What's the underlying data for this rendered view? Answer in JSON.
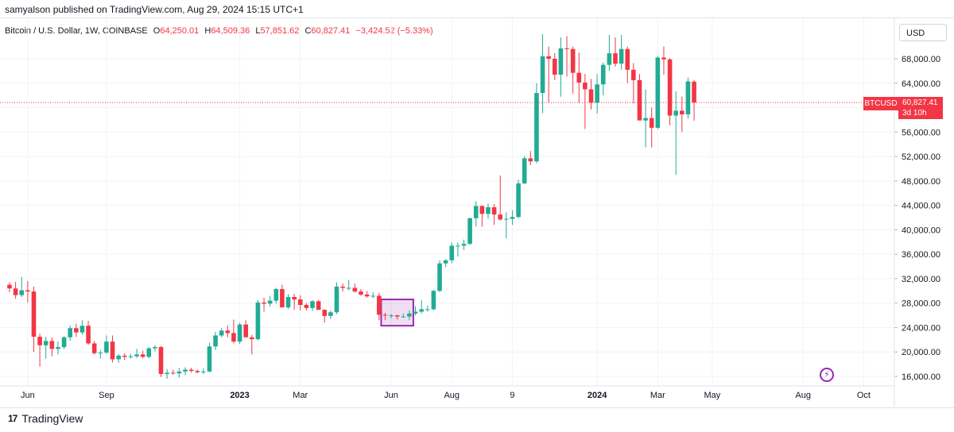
{
  "header": {
    "published": "samyalson published on TradingView.com, Aug 29, 2024 15:15 UTC+1"
  },
  "legend": {
    "symbol": "Bitcoin / U.S. Dollar, 1W, COINBASE",
    "o_label": "O",
    "o_value": "64,250.01",
    "h_label": "H",
    "h_value": "64,509.36",
    "l_label": "L",
    "l_value": "57,851.62",
    "c_label": "C",
    "c_value": "60,827.41",
    "change": "−3,424.52 (−5.33%)"
  },
  "currency_button": "USD",
  "last_price": {
    "ticker": "BTCUSD",
    "price": "60,827.41",
    "countdown": "3d 10h",
    "value": 60827.41
  },
  "colors": {
    "up": "#22ab94",
    "down": "#f23645",
    "highlight": "#9c27b0",
    "grid": "#f0f3fa",
    "text": "#131722"
  },
  "footer": {
    "brand": "TradingView",
    "icon": "tradingview-logo-icon"
  },
  "chart_data": {
    "type": "candlestick",
    "timeframe": "1W",
    "ylim": [
      14000,
      74000
    ],
    "y_ticks": [
      16000,
      20000,
      24000,
      28000,
      32000,
      36000,
      40000,
      44000,
      48000,
      52000,
      56000,
      60000,
      64000,
      68000
    ],
    "y_tick_labels": [
      "16,000.00",
      "20,000.00",
      "24,000.00",
      "28,000.00",
      "32,000.00",
      "36,000.00",
      "40,000.00",
      "44,000.00",
      "48,000.00",
      "52,000.00",
      "56,000.00",
      "60,000.00",
      "64,000.00",
      "68,000.00"
    ],
    "x_ticks": [
      {
        "label": "Jun",
        "index": 3
      },
      {
        "label": "Sep",
        "index": 16
      },
      {
        "label": "2023",
        "index": 38
      },
      {
        "label": "Mar",
        "index": 48
      },
      {
        "label": "Jun",
        "index": 63
      },
      {
        "label": "Aug",
        "index": 73
      },
      {
        "label": "9",
        "index": 83
      },
      {
        "label": "2024",
        "index": 97
      },
      {
        "label": "Mar",
        "index": 107
      },
      {
        "label": "May",
        "index": 116
      },
      {
        "label": "Aug",
        "index": 131
      },
      {
        "label": "Oct",
        "index": 141
      }
    ],
    "candles": [
      [
        31000,
        31400,
        29800,
        30400
      ],
      [
        30400,
        31500,
        28700,
        29300
      ],
      [
        29300,
        32300,
        29000,
        30100
      ],
      [
        30100,
        31600,
        28100,
        29900
      ],
      [
        29900,
        30700,
        20000,
        22500
      ],
      [
        22500,
        23000,
        17600,
        21100
      ],
      [
        21100,
        22500,
        18900,
        21800
      ],
      [
        21800,
        22400,
        19300,
        20500
      ],
      [
        20500,
        21700,
        19600,
        20800
      ],
      [
        20800,
        22600,
        20500,
        22400
      ],
      [
        22400,
        24300,
        21800,
        23900
      ],
      [
        23900,
        24600,
        22500,
        23200
      ],
      [
        23200,
        25200,
        22800,
        24300
      ],
      [
        24300,
        25100,
        21200,
        21400
      ],
      [
        21400,
        21800,
        19600,
        19800
      ],
      [
        19800,
        20300,
        18900,
        19900
      ],
      [
        19900,
        22700,
        19700,
        21700
      ],
      [
        21700,
        22700,
        18300,
        18800
      ],
      [
        18800,
        19700,
        18200,
        19400
      ],
      [
        19400,
        19800,
        18700,
        19200
      ],
      [
        19200,
        19700,
        18900,
        19300
      ],
      [
        19300,
        20500,
        19000,
        19600
      ],
      [
        19600,
        20200,
        19000,
        19200
      ],
      [
        19200,
        20800,
        19000,
        20600
      ],
      [
        20600,
        21100,
        20100,
        20800
      ],
      [
        20800,
        21000,
        15900,
        16400
      ],
      [
        16400,
        17200,
        15600,
        16600
      ],
      [
        16600,
        17100,
        16300,
        16500
      ],
      [
        16500,
        17400,
        15800,
        16800
      ],
      [
        16800,
        17500,
        16200,
        17100
      ],
      [
        17100,
        17400,
        16600,
        16900
      ],
      [
        16900,
        17100,
        16500,
        16700
      ],
      [
        16700,
        17300,
        16400,
        16800
      ],
      [
        16800,
        21500,
        16700,
        20900
      ],
      [
        20900,
        23300,
        20300,
        22700
      ],
      [
        22700,
        23900,
        22400,
        23500
      ],
      [
        23500,
        24300,
        22400,
        23100
      ],
      [
        23100,
        25300,
        21400,
        21700
      ],
      [
        21700,
        24800,
        21300,
        24500
      ],
      [
        24500,
        25200,
        22800,
        22400
      ],
      [
        22400,
        22800,
        19600,
        22100
      ],
      [
        22100,
        28500,
        21900,
        28100
      ],
      [
        28100,
        28900,
        26600,
        27900
      ],
      [
        27900,
        29200,
        27400,
        28400
      ],
      [
        28400,
        30500,
        27900,
        30300
      ],
      [
        30300,
        31000,
        27300,
        27300
      ],
      [
        27300,
        29500,
        27000,
        29000
      ],
      [
        29000,
        29500,
        26900,
        28600
      ],
      [
        28600,
        29300,
        26800,
        27700
      ],
      [
        27700,
        28000,
        26800,
        27200
      ],
      [
        27200,
        28500,
        26700,
        28300
      ],
      [
        28300,
        28500,
        26900,
        26900
      ],
      [
        26900,
        27000,
        24800,
        25900
      ],
      [
        25900,
        26800,
        25400,
        26500
      ],
      [
        26500,
        31400,
        26200,
        30700
      ],
      [
        30700,
        31200,
        29900,
        30500
      ],
      [
        30500,
        31800,
        30100,
        30500
      ],
      [
        30500,
        31200,
        29700,
        29900
      ],
      [
        29900,
        30300,
        29200,
        29400
      ],
      [
        29400,
        30000,
        28900,
        29100
      ],
      [
        29100,
        29800,
        28800,
        29200
      ],
      [
        29200,
        29700,
        25200,
        26100
      ],
      [
        26100,
        26400,
        25200,
        26000
      ],
      [
        26000,
        26200,
        25500,
        26000
      ],
      [
        26000,
        26100,
        25300,
        25800
      ],
      [
        25800,
        26300,
        25600,
        25800
      ],
      [
        25800,
        26800,
        25200,
        26300
      ],
      [
        26300,
        27500,
        26000,
        26600
      ],
      [
        26600,
        28500,
        26300,
        27000
      ],
      [
        27000,
        27600,
        26600,
        27000
      ],
      [
        27000,
        30200,
        26800,
        30000
      ],
      [
        30000,
        35000,
        29800,
        34500
      ],
      [
        34500,
        35200,
        33900,
        35000
      ],
      [
        35000,
        37900,
        34500,
        37400
      ],
      [
        37400,
        37900,
        35600,
        37400
      ],
      [
        37400,
        38400,
        36700,
        37700
      ],
      [
        37700,
        42000,
        37500,
        41900
      ],
      [
        41900,
        44700,
        40500,
        43900
      ],
      [
        43900,
        44000,
        40500,
        42600
      ],
      [
        42600,
        44300,
        41800,
        43700
      ],
      [
        43700,
        44200,
        40800,
        42500
      ],
      [
        42500,
        48900,
        41500,
        41700
      ],
      [
        41700,
        42900,
        38600,
        41800
      ],
      [
        41800,
        43200,
        40800,
        42100
      ],
      [
        42100,
        48200,
        41900,
        47600
      ],
      [
        47600,
        52100,
        47500,
        51700
      ],
      [
        51700,
        52900,
        50600,
        51200
      ],
      [
        51200,
        64000,
        50900,
        62400
      ],
      [
        62400,
        72000,
        59100,
        68400
      ],
      [
        68400,
        70000,
        60800,
        68000
      ],
      [
        68000,
        68900,
        64500,
        65400
      ],
      [
        65400,
        71500,
        61800,
        69700
      ],
      [
        69700,
        71700,
        65100,
        69600
      ],
      [
        69600,
        70000,
        62300,
        65700
      ],
      [
        65700,
        69000,
        60800,
        64100
      ],
      [
        64100,
        65500,
        56500,
        63000
      ],
      [
        63000,
        64700,
        59700,
        60800
      ],
      [
        60800,
        65500,
        59000,
        63800
      ],
      [
        63800,
        67400,
        62000,
        67000
      ],
      [
        67000,
        71900,
        66000,
        68900
      ],
      [
        68900,
        71500,
        66700,
        67200
      ],
      [
        67200,
        71900,
        66200,
        69600
      ],
      [
        69600,
        70000,
        64000,
        66200
      ],
      [
        66200,
        67300,
        60700,
        64500
      ],
      [
        64500,
        65500,
        58400,
        57900
      ],
      [
        57900,
        63000,
        53500,
        58300
      ],
      [
        58300,
        60000,
        53500,
        56700
      ],
      [
        56700,
        68500,
        56500,
        68200
      ],
      [
        68200,
        70000,
        65400,
        67900
      ],
      [
        67900,
        68100,
        57100,
        58700
      ],
      [
        58700,
        62700,
        49000,
        59500
      ],
      [
        59500,
        61800,
        56000,
        58900
      ],
      [
        58900,
        64900,
        58200,
        64300
      ],
      [
        64250.01,
        64509.36,
        57851.62,
        60827.41
      ]
    ],
    "highlight_box": {
      "from_index": 62,
      "to_index": 66,
      "y_low": 24300,
      "y_high": 28600
    }
  }
}
